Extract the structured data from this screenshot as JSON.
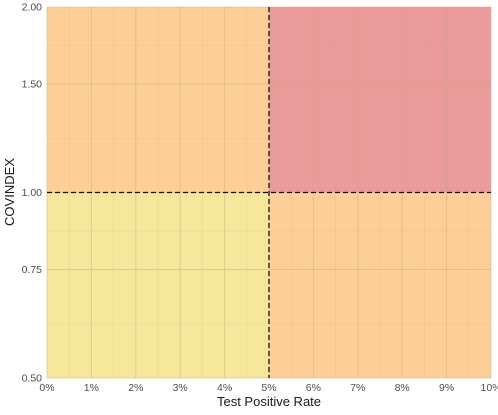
{
  "chart_data": {
    "type": "heatmap",
    "xlabel": "Test Positive Rate",
    "ylabel": "COVINDEX",
    "x_unit": "percent",
    "xlim": [
      0,
      10
    ],
    "x_ticks": [
      0,
      1,
      2,
      3,
      4,
      5,
      6,
      7,
      8,
      9,
      10
    ],
    "x_tick_labels": [
      "0%",
      "1%",
      "2%",
      "3%",
      "4%",
      "5%",
      "6%",
      "7%",
      "8%",
      "9%",
      "10%"
    ],
    "y_scale": "log",
    "ylim": [
      0.5,
      2.0
    ],
    "y_ticks": [
      0.5,
      0.75,
      1.0,
      1.5,
      2.0
    ],
    "y_tick_labels": [
      "0.50",
      "0.75",
      "1.00",
      "1.50",
      "2.00"
    ],
    "threshold_x": 5,
    "threshold_y": 1.0,
    "regions": [
      {
        "x": [
          0,
          5
        ],
        "y": [
          0.5,
          1.0
        ],
        "color": "#f6e79a"
      },
      {
        "x": [
          5,
          10
        ],
        "y": [
          0.5,
          1.0
        ],
        "color": "#fdcf96"
      },
      {
        "x": [
          0,
          5
        ],
        "y": [
          1.0,
          2.0
        ],
        "color": "#fdcf96"
      },
      {
        "x": [
          5,
          10
        ],
        "y": [
          1.0,
          2.0
        ],
        "color": "#eb9a9a"
      }
    ],
    "grid": true,
    "legend": "none"
  }
}
